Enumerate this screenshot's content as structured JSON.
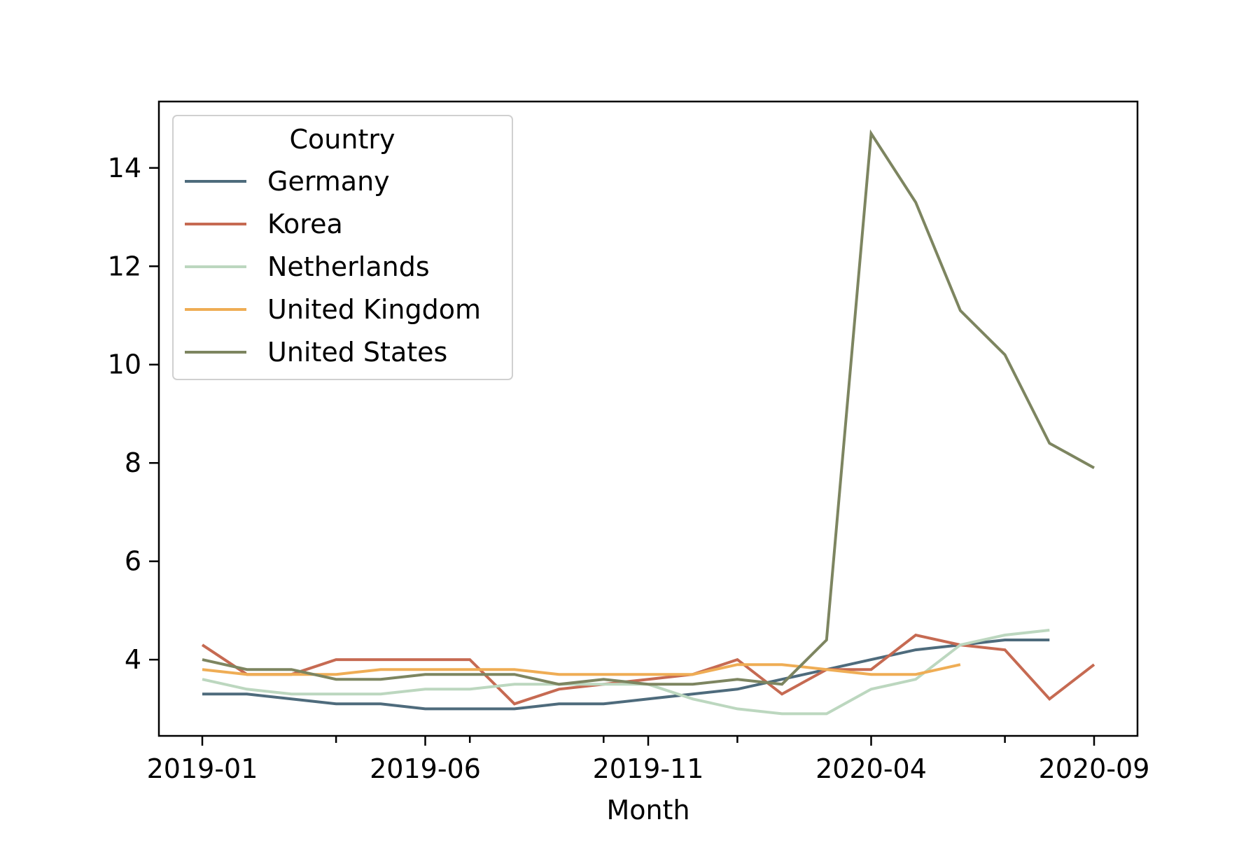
{
  "chart_data": {
    "type": "line",
    "title": "",
    "xlabel": "Month",
    "ylabel": "",
    "x": [
      "2019-01",
      "2019-02",
      "2019-03",
      "2019-04",
      "2019-05",
      "2019-06",
      "2019-07",
      "2019-08",
      "2019-09",
      "2019-10",
      "2019-11",
      "2019-12",
      "2020-01",
      "2020-02",
      "2020-03",
      "2020-04",
      "2020-05",
      "2020-06",
      "2020-07",
      "2020-08",
      "2020-09"
    ],
    "x_tick_labels": [
      "2019-01",
      "2019-06",
      "2019-11",
      "2020-04",
      "2020-09"
    ],
    "y_ticks": [
      4,
      6,
      8,
      10,
      12,
      14
    ],
    "ylim": [
      2.45,
      15.35
    ],
    "grid": false,
    "legend": {
      "title": "Country",
      "placement": "upper-left"
    },
    "series": [
      {
        "name": "Germany",
        "color": "#4e6b7c",
        "values": [
          3.3,
          3.3,
          3.2,
          3.1,
          3.1,
          3.0,
          3.0,
          3.0,
          3.1,
          3.1,
          3.2,
          3.3,
          3.4,
          3.6,
          3.8,
          4.0,
          4.2,
          4.3,
          4.4,
          4.4,
          null
        ]
      },
      {
        "name": "Korea",
        "color": "#c66a52",
        "values": [
          4.3,
          3.7,
          3.7,
          4.0,
          4.0,
          4.0,
          4.0,
          3.1,
          3.4,
          3.5,
          3.6,
          3.7,
          4.0,
          3.3,
          3.8,
          3.8,
          4.5,
          4.3,
          4.2,
          3.2,
          3.9
        ]
      },
      {
        "name": "Netherlands",
        "color": "#bcd7bf",
        "values": [
          3.6,
          3.4,
          3.3,
          3.3,
          3.3,
          3.4,
          3.4,
          3.5,
          3.5,
          3.5,
          3.5,
          3.2,
          3.0,
          2.9,
          2.9,
          3.4,
          3.6,
          4.3,
          4.5,
          4.6,
          null
        ]
      },
      {
        "name": "United Kingdom",
        "color": "#efad55",
        "values": [
          3.8,
          3.7,
          3.7,
          3.7,
          3.8,
          3.8,
          3.8,
          3.8,
          3.7,
          3.7,
          3.7,
          3.7,
          3.9,
          3.9,
          3.8,
          3.7,
          3.7,
          3.9,
          null,
          null,
          null
        ]
      },
      {
        "name": "United States",
        "color": "#7d8560",
        "values": [
          4.0,
          3.8,
          3.8,
          3.6,
          3.6,
          3.7,
          3.7,
          3.7,
          3.5,
          3.6,
          3.5,
          3.5,
          3.6,
          3.5,
          4.4,
          14.7,
          13.3,
          11.1,
          10.2,
          8.4,
          7.9
        ]
      }
    ]
  }
}
